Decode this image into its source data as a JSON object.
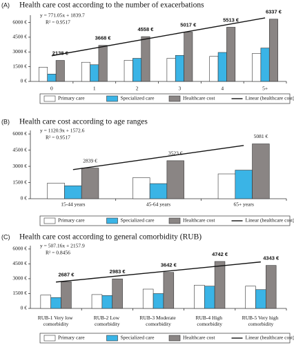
{
  "chart_data": [
    {
      "type": "bar",
      "panel": "(A)",
      "title": "Health care cost according to the number of exacerbations",
      "equation": "y = 771.05x + 1839.7",
      "r_squared": "R² = 0.9517",
      "categories": [
        "0",
        "1",
        "2",
        "3",
        "4",
        "5+"
      ],
      "ylim": [
        0,
        6600
      ],
      "yticks": [
        {
          "value": 0,
          "label": "0 €"
        },
        {
          "value": 1500,
          "label": "1500 €"
        },
        {
          "value": 3000,
          "label": "3000 €"
        },
        {
          "value": 4500,
          "label": "4500 €"
        },
        {
          "value": 6000,
          "label": "6000 €"
        }
      ],
      "series": [
        {
          "name": "Primary care",
          "color": "#ffffff",
          "values": [
            1450,
            1950,
            2150,
            2350,
            2550,
            2850
          ]
        },
        {
          "name": "Specialized care",
          "color": "#3ab4e6",
          "values": [
            750,
            1700,
            2350,
            2650,
            2950,
            3400
          ]
        },
        {
          "name": "Healthcare cost",
          "color": "#8a8584",
          "values": [
            2138,
            3668,
            4558,
            5017,
            5513,
            6337
          ],
          "value_labels": [
            "2138 €",
            "3668 €",
            "4558 €",
            "5017 €",
            "5513 €",
            "6337 €"
          ]
        },
        {
          "name": "Linear (healthcare cost)",
          "color": "#111111",
          "kind": "line",
          "values": [
            2611,
            3382,
            4153,
            4924,
            5695,
            6466
          ]
        }
      ]
    },
    {
      "type": "bar",
      "panel": "(B)",
      "title": "Health care cost according to age ranges",
      "equation": "y = 1120.9x + 1572.6",
      "r_squared": "R² = 0.9517",
      "categories": [
        "15-44 years",
        "45-64 years",
        "65+ years"
      ],
      "ylim": [
        0,
        6200
      ],
      "yticks": [
        {
          "value": 0,
          "label": "0 €"
        },
        {
          "value": 1500,
          "label": "1500 €"
        },
        {
          "value": 3000,
          "label": "3000 €"
        },
        {
          "value": 4500,
          "label": "4500 €"
        },
        {
          "value": 6000,
          "label": "6000 €"
        }
      ],
      "series": [
        {
          "name": "Primary care",
          "color": "#ffffff",
          "values": [
            1450,
            1950,
            2300
          ]
        },
        {
          "name": "Specialized care",
          "color": "#3ab4e6",
          "values": [
            1200,
            1400,
            2650
          ]
        },
        {
          "name": "Healthcare cost",
          "color": "#8a8584",
          "values": [
            2839,
            3523,
            5081
          ],
          "value_labels": [
            "2839 €",
            "3523 €",
            "5081 €"
          ]
        },
        {
          "name": "Linear (healthcare cost)",
          "color": "#111111",
          "kind": "line",
          "values": [
            2694,
            3814,
            4935
          ]
        }
      ]
    },
    {
      "type": "bar",
      "panel": "(C)",
      "title": "Health care cost according to general comorbidity (RUB)",
      "equation": "y = 507.16x + 2157.9",
      "r_squared": "R² = 0.8456",
      "categories": [
        "RUB-1 Very low comorbidity",
        "RUB-2 Low comorbidity",
        "RUB-3 Moderate comorbidity",
        "RUB-4 High comorbidity",
        "RUB-5 Very high comorbidity"
      ],
      "ylim": [
        0,
        6200
      ],
      "yticks": [
        {
          "value": 0,
          "label": "0 €"
        },
        {
          "value": 1500,
          "label": "1500 €"
        },
        {
          "value": 3000,
          "label": "3000 €"
        },
        {
          "value": 4500,
          "label": "4500 €"
        },
        {
          "value": 6000,
          "label": "6000 €"
        }
      ],
      "series": [
        {
          "name": "Primary care",
          "color": "#ffffff",
          "values": [
            1350,
            1400,
            1950,
            2350,
            2250
          ]
        },
        {
          "name": "Specialized care",
          "color": "#3ab4e6",
          "values": [
            1100,
            1300,
            1500,
            2250,
            1900
          ]
        },
        {
          "name": "Healthcare cost",
          "color": "#8a8584",
          "values": [
            2687,
            2983,
            3642,
            4742,
            4343
          ],
          "value_labels": [
            "2687 €",
            "2983 €",
            "3642 €",
            "4742 €",
            "4343 €"
          ]
        },
        {
          "name": "Linear (healthcare cost)",
          "color": "#111111",
          "kind": "line",
          "values": [
            2665,
            3172,
            3679,
            4186,
            4694
          ]
        }
      ]
    }
  ]
}
